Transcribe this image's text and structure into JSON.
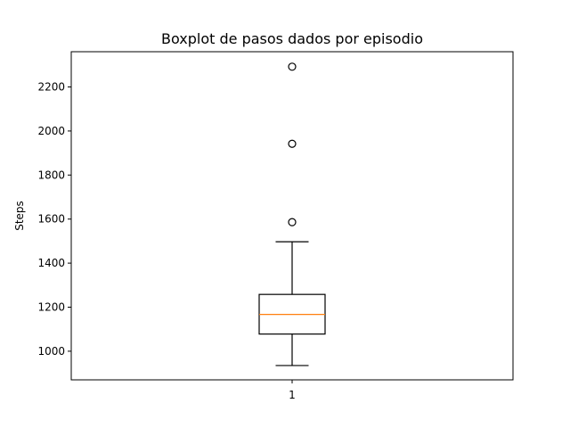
{
  "chart_data": {
    "type": "boxplot",
    "title": "Boxplot de pasos dados por episodio",
    "xlabel": "",
    "ylabel": "Steps",
    "categories": [
      "1"
    ],
    "ylim": [
      870,
      2360
    ],
    "yticks": [
      1000,
      1200,
      1400,
      1600,
      1800,
      2000,
      2200
    ],
    "grid": false,
    "boxes": [
      {
        "category": "1",
        "whisker_low": 935,
        "q1": 1078,
        "median": 1167,
        "q3": 1258,
        "whisker_high": 1497,
        "outliers": [
          1586,
          1942,
          2292
        ]
      }
    ],
    "colors": {
      "box": "#000000",
      "median": "#ff7f0e",
      "outlier": "#000000"
    }
  }
}
